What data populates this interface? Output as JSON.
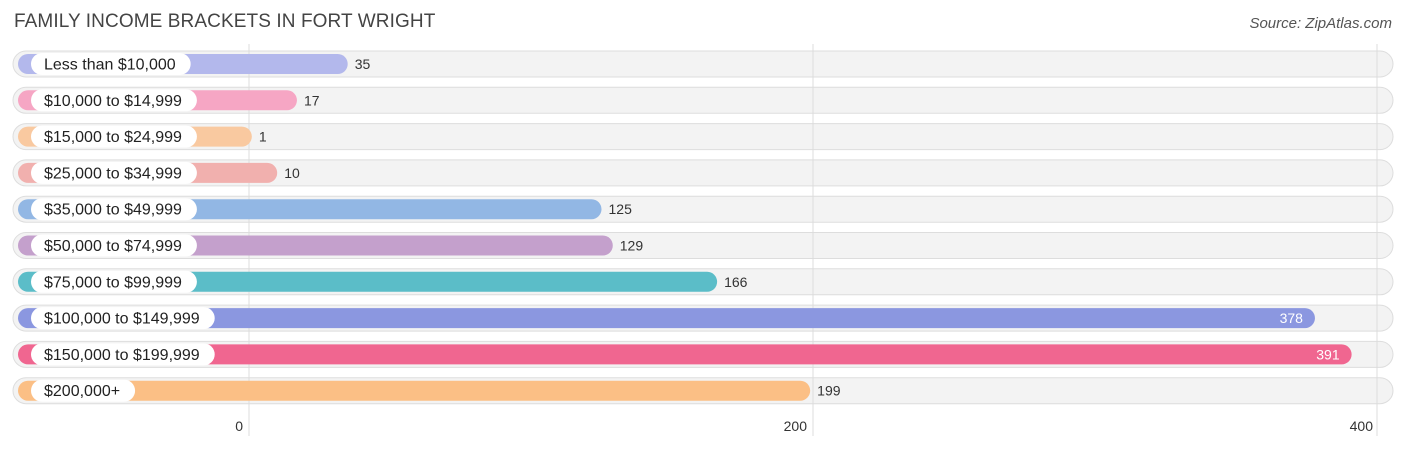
{
  "title": "FAMILY INCOME BRACKETS IN FORT WRIGHT",
  "source": "Source: ZipAtlas.com",
  "chart_data": {
    "type": "bar",
    "orientation": "horizontal",
    "title": "FAMILY INCOME BRACKETS IN FORT WRIGHT",
    "categories": [
      "Less than $10,000",
      "$10,000 to $14,999",
      "$15,000 to $24,999",
      "$25,000 to $34,999",
      "$35,000 to $49,999",
      "$50,000 to $74,999",
      "$75,000 to $99,999",
      "$100,000 to $149,999",
      "$150,000 to $199,999",
      "$200,000+"
    ],
    "values": [
      35,
      17,
      1,
      10,
      125,
      129,
      166,
      378,
      391,
      199
    ],
    "colors": [
      "#b3b8ec",
      "#f6a6c4",
      "#f9c9a0",
      "#f1b0ae",
      "#92b7e4",
      "#c4a0cc",
      "#5bbdc8",
      "#8b97e0",
      "#f06690",
      "#fbbf85"
    ],
    "xticks": [
      0,
      200,
      400
    ],
    "xlim": [
      0,
      400
    ],
    "xlabel": "",
    "ylabel": "",
    "grid": true
  }
}
